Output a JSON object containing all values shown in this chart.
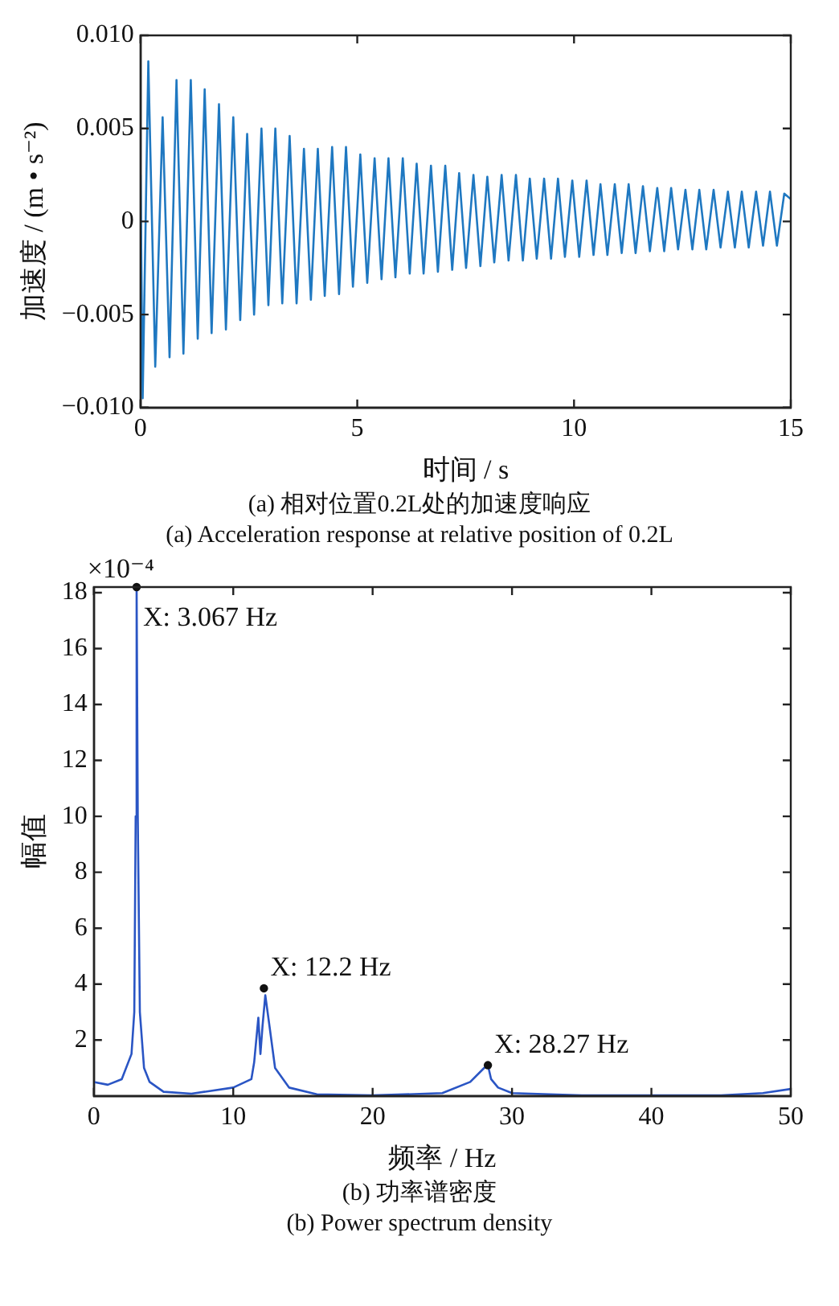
{
  "chart_data": [
    {
      "type": "line",
      "title": "(a) 相对位置0.2L处的加速度响应",
      "subtitle": "(a) Acceleration response at relative position of 0.2L",
      "xlabel": "时间 / s",
      "ylabel": "加速度 / (m • s⁻²)",
      "color": "#1f78c1",
      "grid": false,
      "legend": false,
      "marker": "none",
      "line_style": "solid",
      "xlim": [
        0,
        15
      ],
      "xticks": [
        0,
        5,
        10,
        15
      ],
      "ylim": [
        -0.01,
        0.01
      ],
      "yticks": [
        {
          "value": -0.01,
          "label": "−0.010"
        },
        {
          "value": -0.005,
          "label": "−0.005"
        },
        {
          "value": 0,
          "label": "0"
        },
        {
          "value": 0.005,
          "label": "0.005"
        },
        {
          "value": 0.01,
          "label": "0.010"
        }
      ],
      "x": [
        0,
        0.05,
        0.18,
        0.34,
        0.51,
        0.67,
        0.83,
        0.99,
        1.16,
        1.32,
        1.48,
        1.64,
        1.81,
        1.97,
        2.14,
        2.3,
        2.46,
        2.62,
        2.79,
        2.95,
        3.11,
        3.27,
        3.44,
        3.6,
        3.77,
        3.93,
        4.09,
        4.25,
        4.42,
        4.58,
        4.74,
        4.9,
        5.07,
        5.23,
        5.4,
        5.56,
        5.72,
        5.88,
        6.05,
        6.21,
        6.37,
        6.53,
        6.7,
        6.86,
        7.03,
        7.19,
        7.35,
        7.51,
        7.68,
        7.84,
        8.0,
        8.16,
        8.33,
        8.49,
        8.66,
        8.82,
        8.98,
        9.14,
        9.31,
        9.47,
        9.63,
        9.79,
        9.96,
        10.12,
        10.29,
        10.45,
        10.61,
        10.77,
        10.94,
        11.1,
        11.26,
        11.42,
        11.59,
        11.75,
        11.92,
        12.08,
        12.24,
        12.4,
        12.57,
        12.73,
        12.89,
        13.05,
        13.22,
        13.38,
        13.55,
        13.71,
        13.87,
        14.03,
        14.2,
        14.36,
        14.52,
        14.68,
        14.85,
        15
      ],
      "values": [
        0.0025,
        -0.0095,
        0.0086,
        -0.0078,
        0.0056,
        -0.0073,
        0.0076,
        -0.0071,
        0.0076,
        -0.0063,
        0.0071,
        -0.006,
        0.0063,
        -0.0058,
        0.0056,
        -0.0053,
        0.0047,
        -0.005,
        0.005,
        -0.0045,
        0.005,
        -0.0044,
        0.0046,
        -0.0044,
        0.0039,
        -0.0042,
        0.0039,
        -0.004,
        0.004,
        -0.0039,
        0.004,
        -0.0035,
        0.0036,
        -0.0033,
        0.0034,
        -0.0031,
        0.0034,
        -0.003,
        0.0034,
        -0.0028,
        0.0031,
        -0.0028,
        0.003,
        -0.0027,
        0.003,
        -0.0026,
        0.0026,
        -0.0025,
        0.0025,
        -0.0024,
        0.0024,
        -0.0022,
        0.0025,
        -0.0021,
        0.0025,
        -0.0021,
        0.0023,
        -0.002,
        0.0023,
        -0.002,
        0.0023,
        -0.0019,
        0.0022,
        -0.0019,
        0.0022,
        -0.0018,
        0.002,
        -0.0018,
        0.002,
        -0.0017,
        0.002,
        -0.0017,
        0.0019,
        -0.0016,
        0.0018,
        -0.0016,
        0.0018,
        -0.0015,
        0.0017,
        -0.0015,
        0.0017,
        -0.0015,
        0.0017,
        -0.0014,
        0.0016,
        -0.0014,
        0.0016,
        -0.0014,
        0.0016,
        -0.0013,
        0.0016,
        -0.0013,
        0.0015,
        0.0012
      ]
    },
    {
      "type": "line",
      "title": "(b) 功率谱密度",
      "subtitle": "(b) Power spectrum density",
      "xlabel": "频率 / Hz",
      "ylabel": "幅值",
      "color": "#2a55c4",
      "grid": false,
      "legend": false,
      "marker": "none",
      "line_style": "solid",
      "xlim": [
        0,
        50
      ],
      "xticks": [
        0,
        10,
        20,
        30,
        40,
        50
      ],
      "ylim": [
        0,
        18.2
      ],
      "yticks": [
        2,
        4,
        6,
        8,
        10,
        12,
        14,
        16,
        18
      ],
      "annotations": [
        "×10⁻⁴",
        {
          "text": "X: 3.067 Hz",
          "x": 3.067,
          "y": 18.2
        },
        {
          "text": "X: 12.2 Hz",
          "x": 12.2,
          "y": 3.85
        },
        {
          "text": "X: 28.27 Hz",
          "x": 28.27,
          "y": 1.1
        }
      ],
      "x": [
        0,
        1,
        2,
        2.7,
        2.9,
        3.0,
        3.067,
        3.15,
        3.3,
        3.6,
        4,
        5,
        7,
        10,
        11.3,
        11.5,
        11.8,
        11.95,
        12.1,
        12.3,
        12.6,
        13,
        14,
        16,
        20,
        25,
        27,
        28,
        28.27,
        28.5,
        29,
        30,
        35,
        45,
        48,
        50
      ],
      "values": [
        0.5,
        0.4,
        0.6,
        1.5,
        3,
        10,
        18.2,
        10,
        3,
        1,
        0.5,
        0.15,
        0.08,
        0.3,
        0.6,
        1.2,
        2.8,
        1.5,
        2.5,
        3.6,
        2.5,
        1,
        0.3,
        0.06,
        0.02,
        0.1,
        0.5,
        1.0,
        1.1,
        0.6,
        0.3,
        0.1,
        0.02,
        0.02,
        0.1,
        0.25
      ]
    }
  ]
}
